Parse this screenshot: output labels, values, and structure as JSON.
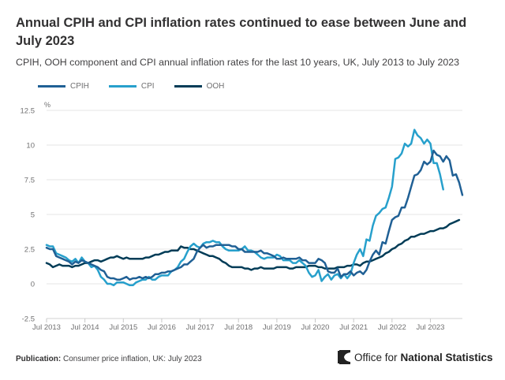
{
  "title": "Annual CPIH and CPI inflation rates continued to ease between June and July 2023",
  "subtitle": "CPIH, OOH component and CPI annual inflation rates for the last 10 years, UK, July 2013 to July 2023",
  "footer": {
    "publication_label": "Publication:",
    "publication_text": "Consumer price inflation, UK: July 2023",
    "logo_text_light": "Office for",
    "logo_text_bold": "National Statistics"
  },
  "chart_data": {
    "type": "line",
    "title": "Annual CPIH and CPI inflation rates continued to ease between June and July 2023",
    "ylabel": "%",
    "xlabel": "",
    "ylim": [
      -2.5,
      12.5
    ],
    "yticks": [
      -2.5,
      0,
      2.5,
      5,
      7.5,
      10,
      12.5
    ],
    "ytick_labels": [
      "-2.5",
      "0",
      "2.5",
      "5",
      "7.5",
      "10",
      "12.5"
    ],
    "xtick_labels": [
      "Jul 2013",
      "Jul 2014",
      "Jul 2015",
      "Jul 2016",
      "Jul 2017",
      "Jul 2018",
      "Jul 2019",
      "Jul 2020",
      "Jul 2021",
      "Jul 2022",
      "Jul 2023"
    ],
    "x_start": "Jul 2013",
    "x_end": "Jul 2023",
    "frequency": "monthly",
    "grid": true,
    "legend_position": "top-left",
    "series": [
      {
        "name": "CPIH",
        "color": "#206095",
        "values": [
          2.6,
          2.5,
          2.5,
          2.0,
          1.9,
          1.8,
          1.7,
          1.6,
          1.4,
          1.6,
          1.5,
          1.7,
          1.6,
          1.5,
          1.4,
          1.3,
          1.2,
          1.0,
          0.9,
          0.5,
          0.4,
          0.4,
          0.3,
          0.3,
          0.4,
          0.5,
          0.3,
          0.4,
          0.4,
          0.5,
          0.4,
          0.5,
          0.4,
          0.5,
          0.7,
          0.7,
          0.8,
          0.8,
          0.9,
          0.9,
          1.0,
          1.1,
          1.2,
          1.4,
          1.4,
          1.6,
          1.8,
          2.3,
          2.6,
          2.8,
          2.6,
          2.7,
          2.7,
          2.8,
          2.8,
          2.8,
          2.8,
          2.8,
          2.7,
          2.7,
          2.5,
          2.5,
          2.3,
          2.3,
          2.3,
          2.3,
          2.3,
          2.4,
          2.2,
          2.2,
          2.1,
          2.0,
          1.8,
          1.8,
          1.9,
          1.8,
          1.8,
          1.8,
          1.8,
          1.9,
          1.7,
          1.7,
          1.5,
          1.5,
          1.5,
          1.8,
          1.7,
          1.5,
          0.9,
          0.8,
          0.8,
          1.1,
          0.5,
          0.7,
          0.7,
          0.9,
          0.6,
          0.8,
          0.9,
          0.7,
          1.0,
          1.6,
          2.1,
          2.4,
          2.1,
          3.0,
          2.9,
          3.8,
          4.6,
          4.8,
          4.9,
          5.5,
          5.5,
          6.2,
          7.0,
          7.8,
          7.9,
          8.2,
          8.8,
          8.6,
          8.8,
          9.6,
          9.3,
          9.2,
          8.8,
          9.2,
          8.9,
          7.8,
          7.9,
          7.3,
          6.4
        ],
        "note": "values approximate, read from chart, monthly Jul 2013 - Jul 2023"
      },
      {
        "name": "CPI",
        "color": "#27a0cc",
        "values": [
          2.8,
          2.7,
          2.7,
          2.2,
          2.1,
          2.0,
          1.9,
          1.7,
          1.6,
          1.8,
          1.5,
          1.9,
          1.6,
          1.5,
          1.2,
          1.3,
          1.0,
          0.5,
          0.3,
          0.0,
          0.0,
          -0.1,
          0.1,
          0.1,
          0.1,
          0.0,
          -0.1,
          -0.1,
          0.1,
          0.2,
          0.3,
          0.3,
          0.5,
          0.3,
          0.3,
          0.5,
          0.6,
          0.6,
          0.6,
          0.9,
          1.0,
          1.2,
          1.6,
          1.8,
          2.3,
          2.7,
          2.9,
          2.7,
          2.6,
          2.9,
          3.0,
          3.0,
          3.1,
          3.0,
          3.0,
          2.7,
          2.5,
          2.4,
          2.4,
          2.4,
          2.4,
          2.5,
          2.7,
          2.4,
          2.4,
          2.3,
          2.1,
          1.9,
          1.8,
          1.9,
          1.9,
          1.9,
          2.1,
          2.0,
          1.7,
          1.7,
          1.7,
          1.5,
          1.5,
          1.7,
          1.5,
          1.3,
          0.8,
          0.5,
          0.6,
          1.0,
          0.2,
          0.5,
          0.7,
          0.3,
          0.6,
          0.7,
          0.4,
          0.7,
          0.4,
          0.7,
          1.5,
          2.1,
          2.5,
          2.0,
          3.2,
          3.1,
          4.2,
          4.9,
          5.1,
          5.4,
          5.5,
          6.2,
          7.0,
          9.0,
          9.1,
          9.4,
          10.1,
          9.9,
          10.1,
          11.1,
          10.7,
          10.5,
          10.1,
          10.4,
          10.1,
          8.7,
          8.7,
          7.9,
          6.8
        ]
      },
      {
        "name": "OOH",
        "color": "#003c57",
        "values": [
          1.5,
          1.4,
          1.2,
          1.3,
          1.4,
          1.3,
          1.3,
          1.3,
          1.2,
          1.3,
          1.3,
          1.4,
          1.5,
          1.5,
          1.6,
          1.7,
          1.7,
          1.6,
          1.7,
          1.8,
          1.9,
          1.9,
          2.0,
          1.9,
          1.8,
          1.9,
          1.8,
          1.8,
          1.8,
          1.8,
          1.8,
          1.9,
          1.9,
          2.0,
          2.1,
          2.1,
          2.2,
          2.3,
          2.3,
          2.4,
          2.4,
          2.4,
          2.7,
          2.6,
          2.6,
          2.5,
          2.5,
          2.4,
          2.3,
          2.2,
          2.1,
          2.0,
          2.0,
          1.9,
          1.8,
          1.6,
          1.5,
          1.3,
          1.2,
          1.2,
          1.2,
          1.2,
          1.1,
          1.1,
          1.0,
          1.1,
          1.1,
          1.2,
          1.1,
          1.1,
          1.1,
          1.1,
          1.2,
          1.2,
          1.2,
          1.2,
          1.1,
          1.1,
          1.2,
          1.2,
          1.2,
          1.2,
          1.3,
          1.3,
          1.3,
          1.2,
          1.2,
          1.1,
          1.1,
          1.1,
          1.1,
          1.2,
          1.2,
          1.2,
          1.3,
          1.3,
          1.4,
          1.4,
          1.3,
          1.5,
          1.6,
          1.6,
          1.7,
          1.8,
          1.9,
          2.0,
          2.2,
          2.3,
          2.5,
          2.6,
          2.8,
          2.9,
          3.1,
          3.2,
          3.4,
          3.4,
          3.5,
          3.6,
          3.6,
          3.7,
          3.8,
          3.8,
          3.9,
          4.0,
          4.0,
          4.1,
          4.3,
          4.4,
          4.5,
          4.6
        ]
      }
    ]
  }
}
